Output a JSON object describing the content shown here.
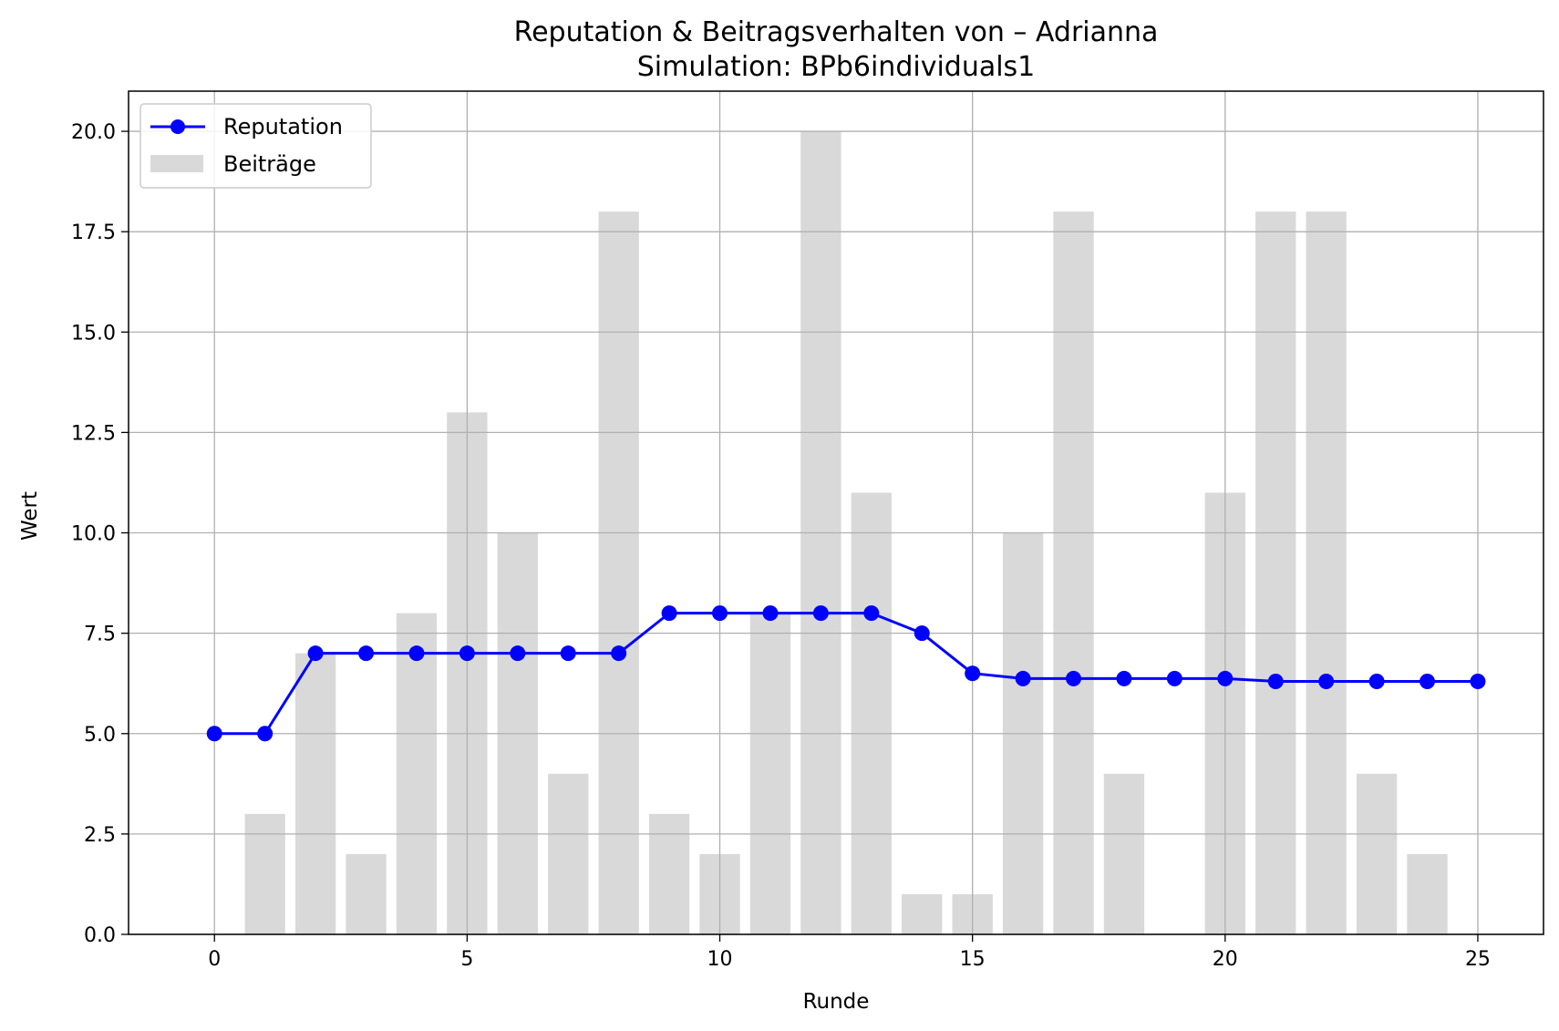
{
  "chart_data": {
    "type": "bar+line",
    "title": "Reputation & Beitragsverhalten von – Adrianna",
    "subtitle": "Simulation: BPb6individuals1",
    "xlabel": "Runde",
    "ylabel": "Wert",
    "xlim": [
      -1.7,
      26.3
    ],
    "ylim": [
      0,
      21
    ],
    "xticks": [
      0,
      5,
      10,
      15,
      20,
      25
    ],
    "yticks": [
      0,
      2.5,
      5,
      7.5,
      10,
      12.5,
      15,
      17.5,
      20
    ],
    "xtick_labels": [
      "0",
      "5",
      "10",
      "15",
      "20",
      "25"
    ],
    "ytick_labels": [
      "0.0",
      "2.5",
      "5.0",
      "7.5",
      "10.0",
      "12.5",
      "15.0",
      "17.5",
      "20.0"
    ],
    "grid": true,
    "legend_position": "top-left",
    "legend": [
      {
        "label": "Reputation",
        "kind": "line-marker",
        "color": "#0000ff"
      },
      {
        "label": "Beiträge",
        "kind": "patch",
        "color": "#d9d9d9"
      }
    ],
    "bars": {
      "name": "Beiträge",
      "color": "#d9d9d9",
      "x": [
        1,
        2,
        3,
        4,
        5,
        6,
        7,
        8,
        9,
        10,
        11,
        12,
        13,
        14,
        15,
        16,
        17,
        18,
        19,
        20,
        21,
        22,
        23,
        24
      ],
      "values": [
        3,
        7,
        2,
        8,
        13,
        10,
        4,
        18,
        3,
        2,
        8,
        20,
        11,
        1,
        1,
        10,
        18,
        4,
        0,
        11,
        18,
        18,
        4,
        2
      ]
    },
    "line": {
      "name": "Reputation",
      "color": "#0000ff",
      "x": [
        0,
        1,
        2,
        3,
        4,
        5,
        6,
        7,
        8,
        9,
        10,
        11,
        12,
        13,
        14,
        15,
        16,
        17,
        18,
        19,
        20,
        21,
        22,
        23,
        24,
        25
      ],
      "values": [
        5,
        5,
        7,
        7,
        7,
        7,
        7,
        7,
        7,
        8,
        8,
        8,
        8,
        8,
        7.5,
        6.5,
        6.37,
        6.37,
        6.37,
        6.37,
        6.37,
        6.3,
        6.3,
        6.3,
        6.3,
        6.3
      ]
    }
  }
}
